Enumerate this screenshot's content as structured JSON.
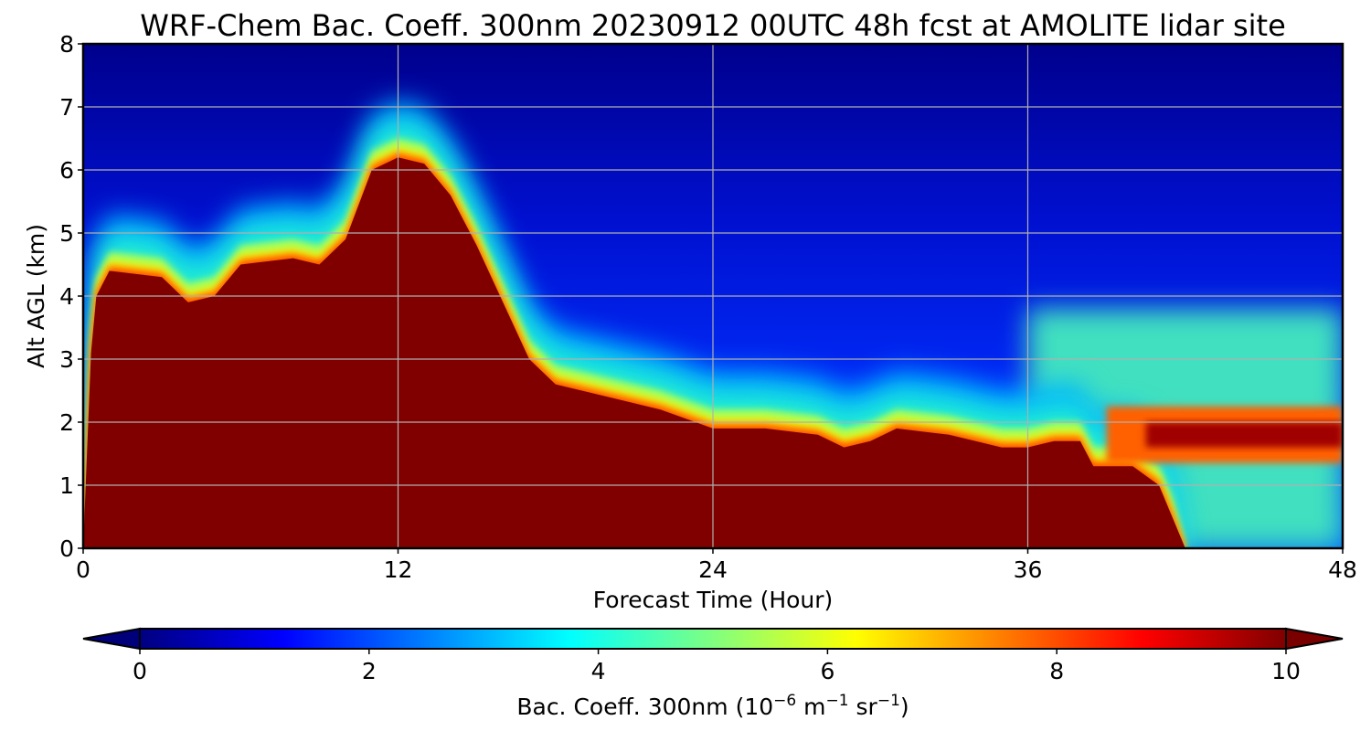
{
  "chart_data": {
    "type": "heatmap",
    "title": "WRF-Chem Bac. Coeff. 300nm  20230912 00UTC 48h fcst at AMOLITE lidar site",
    "xlabel": "Forecast Time (Hour)",
    "ylabel": "Alt AGL (km)",
    "xlim": [
      0,
      48
    ],
    "ylim": [
      0,
      8
    ],
    "xticks": [
      "0",
      "12",
      "24",
      "36",
      "48"
    ],
    "yticks": [
      "0",
      "1",
      "2",
      "3",
      "4",
      "5",
      "6",
      "7",
      "8"
    ],
    "grid": true,
    "colormap": "jet",
    "colorbar": {
      "label_main": "Bac. Coeff. 300nm  (10",
      "label_exp1": "−6",
      "label_mid": " m",
      "label_exp2": "−1",
      "label_end": " sr",
      "label_exp3": "−1",
      "label_close": ")",
      "range": [
        0,
        10
      ],
      "extend": "both",
      "ticks": [
        "0",
        "2",
        "4",
        "6",
        "8",
        "10"
      ]
    },
    "high_layer_top_km": [
      [
        0,
        0
      ],
      [
        0.3,
        3.1
      ],
      [
        0.5,
        4.0
      ],
      [
        1,
        4.4
      ],
      [
        3,
        4.3
      ],
      [
        4,
        3.9
      ],
      [
        5,
        4.0
      ],
      [
        6,
        4.5
      ],
      [
        8,
        4.6
      ],
      [
        9,
        4.5
      ],
      [
        10,
        4.9
      ],
      [
        11,
        6.0
      ],
      [
        12,
        6.2
      ],
      [
        13,
        6.1
      ],
      [
        14,
        5.6
      ],
      [
        15,
        4.8
      ],
      [
        16,
        3.9
      ],
      [
        17,
        3.0
      ],
      [
        18,
        2.6
      ],
      [
        20,
        2.4
      ],
      [
        22,
        2.2
      ],
      [
        24,
        1.9
      ],
      [
        26,
        1.9
      ],
      [
        28,
        1.8
      ],
      [
        29,
        1.6
      ],
      [
        30,
        1.7
      ],
      [
        31,
        1.9
      ],
      [
        33,
        1.8
      ],
      [
        35,
        1.6
      ],
      [
        36,
        1.6
      ],
      [
        37,
        1.7
      ],
      [
        38,
        1.7
      ],
      [
        38.5,
        1.3
      ],
      [
        40,
        1.3
      ],
      [
        41,
        1.0
      ],
      [
        41.5,
        0.5
      ],
      [
        42,
        0
      ]
    ],
    "aloft_layer_km": {
      "x_start": 39,
      "x_end": 48,
      "bottom": 1.6,
      "top": 2.0
    }
  }
}
